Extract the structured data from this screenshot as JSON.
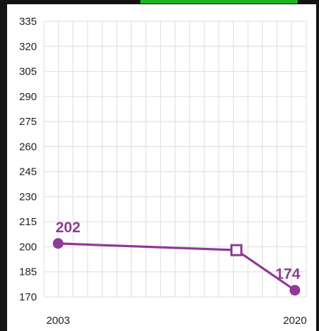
{
  "colors": {
    "series": "#8e3a96",
    "grid": "#e2e2e2",
    "frame": "#141414",
    "accent_bar": "#1fb31f"
  },
  "chart_data": {
    "type": "line",
    "title": "",
    "xlabel": "",
    "ylabel": "",
    "grid": true,
    "ylim": [
      170,
      335
    ],
    "yticks": [
      "335",
      "320",
      "305",
      "290",
      "275",
      "260",
      "245",
      "230",
      "215",
      "200",
      "185",
      "170"
    ],
    "xticks": [
      "2003",
      "2020"
    ],
    "xlim": [
      2003,
      2020
    ],
    "series": [
      {
        "values": [
          {
            "x": 2003,
            "y": 202,
            "label": "202",
            "marker": "circle"
          },
          {
            "x": 2015.8,
            "y": 198,
            "marker": "open-square"
          },
          {
            "x": 2020,
            "y": 174,
            "label": "174",
            "marker": "circle"
          }
        ]
      }
    ]
  }
}
